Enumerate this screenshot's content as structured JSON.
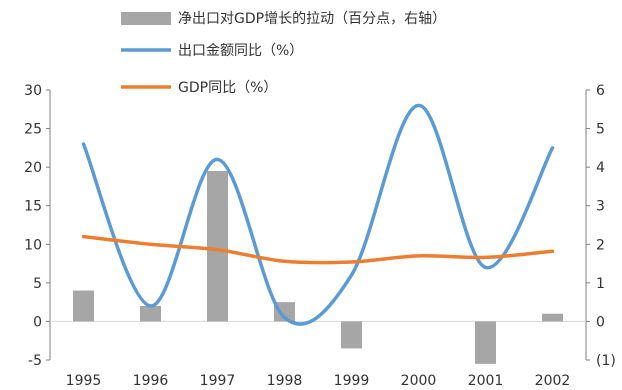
{
  "chart_data": {
    "type": "bar+line",
    "categories": [
      "1995",
      "1996",
      "1997",
      "1998",
      "1999",
      "2000",
      "2001",
      "2002"
    ],
    "series": [
      {
        "name": "净出口对GDP增长的拉动（百分点，右轴）",
        "type": "bar",
        "axis": "right",
        "color": "#a6a6a6",
        "values": [
          0.8,
          0.4,
          3.9,
          0.5,
          -0.7,
          0.0,
          -1.1,
          0.2
        ]
      },
      {
        "name": "出口金额同比（%）",
        "type": "line",
        "axis": "left",
        "color": "#5b9bd5",
        "values": [
          23,
          2,
          21,
          0.5,
          6,
          28,
          7,
          22.5
        ]
      },
      {
        "name": "GDP同比（%）",
        "type": "line",
        "axis": "left",
        "color": "#ed7d31",
        "values": [
          11,
          10,
          9.3,
          7.8,
          7.7,
          8.5,
          8.3,
          9.1
        ]
      }
    ],
    "left_axis": {
      "min": -5,
      "max": 30,
      "step": 5,
      "ticks": [
        "-5",
        "0",
        "5",
        "10",
        "15",
        "20",
        "25",
        "30"
      ]
    },
    "right_axis": {
      "min": -1,
      "max": 6,
      "step": 1,
      "ticks": [
        "(1)",
        "0",
        "1",
        "2",
        "3",
        "4",
        "5",
        "6"
      ],
      "negative_color": "#c00000"
    },
    "grid": false,
    "legend_position": "top"
  }
}
